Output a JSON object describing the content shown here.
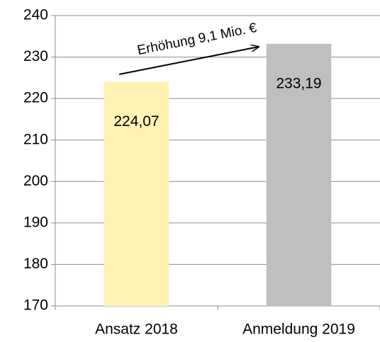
{
  "chart_data": {
    "type": "bar",
    "categories": [
      "Ansatz 2018",
      "Anmeldung 2019"
    ],
    "values": [
      224.07,
      233.19
    ],
    "value_labels": [
      "224,07",
      "233,19"
    ],
    "colors": [
      "#fff2b3",
      "#bfbfbf"
    ],
    "ylim": [
      170,
      240
    ],
    "yticks": [
      170,
      180,
      190,
      200,
      210,
      220,
      230,
      240
    ],
    "grid": true,
    "annotation": "Erhöhung 9,1 Mio. €"
  }
}
